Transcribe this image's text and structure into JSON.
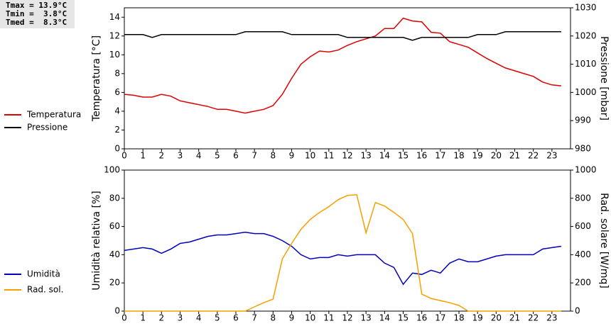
{
  "chart_data": [
    {
      "type": "line",
      "annotations": [
        "Tmax = 13.9°C",
        "Tmin =  3.8°C",
        "Tmed =  8.3°C"
      ],
      "y_label": "Temperatura [°C]",
      "y2_label": "Pressione [mbar]",
      "x": [
        0,
        0.5,
        1,
        1.5,
        2,
        2.5,
        3,
        3.5,
        4,
        4.5,
        5,
        5.5,
        6,
        6.5,
        7,
        7.5,
        8,
        8.5,
        9,
        9.5,
        10,
        10.5,
        11,
        11.5,
        12,
        12.5,
        13,
        13.5,
        14,
        14.5,
        15,
        15.5,
        16,
        16.5,
        17,
        17.5,
        18,
        18.5,
        19,
        19.5,
        20,
        20.5,
        21,
        21.5,
        22,
        22.5,
        23,
        23.5
      ],
      "xlim": [
        0,
        24
      ],
      "xticks": [
        0,
        1,
        2,
        3,
        4,
        5,
        6,
        7,
        8,
        9,
        10,
        11,
        12,
        13,
        14,
        15,
        16,
        17,
        18,
        19,
        20,
        21,
        22,
        23
      ],
      "ylim": [
        0,
        15
      ],
      "yticks": [
        0,
        2,
        4,
        6,
        8,
        10,
        12,
        14
      ],
      "y2lim": [
        980,
        1030
      ],
      "y2ticks": [
        980,
        990,
        1000,
        1010,
        1020,
        1030
      ],
      "series": [
        {
          "name": "Temperatura",
          "color": "#dd0000",
          "values": [
            5.8,
            5.7,
            5.5,
            5.5,
            5.8,
            5.6,
            5.1,
            4.9,
            4.7,
            4.5,
            4.2,
            4.2,
            4.0,
            3.8,
            4.0,
            4.2,
            4.6,
            5.8,
            7.5,
            9.0,
            9.8,
            10.4,
            10.3,
            10.5,
            11.0,
            11.4,
            11.7,
            12.0,
            12.8,
            12.8,
            13.9,
            13.6,
            13.5,
            12.4,
            12.3,
            11.4,
            11.1,
            10.8,
            10.2,
            9.6,
            9.1,
            8.6,
            8.3,
            8.0,
            7.7,
            7.1,
            6.8,
            6.7
          ]
        },
        {
          "name": "Pressione",
          "color": "#000000",
          "axis": "y2",
          "values": [
            1020.5,
            1020.5,
            1020.5,
            1019.5,
            1020.5,
            1020.5,
            1020.5,
            1020.5,
            1020.5,
            1020.5,
            1020.5,
            1020.5,
            1020.5,
            1021.5,
            1021.5,
            1021.5,
            1021.5,
            1021.5,
            1020.5,
            1020.5,
            1020.5,
            1020.5,
            1020.5,
            1020.5,
            1019.5,
            1019.5,
            1019.5,
            1019.5,
            1019.5,
            1019.5,
            1019.5,
            1018.5,
            1019.5,
            1019.5,
            1019.5,
            1019.5,
            1019.5,
            1019.5,
            1020.5,
            1020.5,
            1020.5,
            1021.5,
            1021.5,
            1021.5,
            1021.5,
            1021.5,
            1021.5,
            1021.5
          ]
        }
      ]
    },
    {
      "type": "line",
      "y_label": "Umidità relativa [%]",
      "y2_label": "Rad. solare [W/mq]",
      "x": [
        0,
        0.5,
        1,
        1.5,
        2,
        2.5,
        3,
        3.5,
        4,
        4.5,
        5,
        5.5,
        6,
        6.5,
        7,
        7.5,
        8,
        8.5,
        9,
        9.5,
        10,
        10.5,
        11,
        11.5,
        12,
        12.5,
        13,
        13.5,
        14,
        14.5,
        15,
        15.5,
        16,
        16.5,
        17,
        17.5,
        18,
        18.5,
        19,
        19.5,
        20,
        20.5,
        21,
        21.5,
        22,
        22.5,
        23,
        23.5
      ],
      "xlim": [
        0,
        24
      ],
      "xticks": [
        0,
        1,
        2,
        3,
        4,
        5,
        6,
        7,
        8,
        9,
        10,
        11,
        12,
        13,
        14,
        15,
        16,
        17,
        18,
        19,
        20,
        21,
        22,
        23
      ],
      "ylim": [
        0,
        100
      ],
      "yticks": [
        0,
        20,
        40,
        60,
        80,
        100
      ],
      "y2lim": [
        0,
        1000
      ],
      "y2ticks": [
        0,
        200,
        400,
        600,
        800,
        1000
      ],
      "series": [
        {
          "name": "Umidità",
          "color": "#0000bb",
          "values": [
            43,
            44,
            45,
            44,
            41,
            44,
            48,
            49,
            51,
            53,
            54,
            54,
            55,
            56,
            55,
            55,
            53,
            50,
            46,
            40,
            37,
            38,
            38,
            40,
            39,
            40,
            40,
            40,
            34,
            31,
            19,
            27,
            26,
            29,
            27,
            34,
            37,
            35,
            35,
            37,
            39,
            40,
            40,
            40,
            40,
            44,
            45,
            46
          ]
        },
        {
          "name": "Rad. sol.",
          "color": "#f5a000",
          "axis": "y2",
          "values": [
            0,
            0,
            0,
            0,
            0,
            0,
            0,
            0,
            0,
            0,
            0,
            0,
            0,
            0,
            30,
            60,
            85,
            370,
            480,
            580,
            650,
            700,
            740,
            790,
            820,
            825,
            555,
            770,
            745,
            700,
            650,
            550,
            120,
            90,
            75,
            60,
            40,
            0,
            0,
            0,
            0,
            0,
            0,
            0,
            0,
            0,
            0,
            0
          ]
        }
      ]
    }
  ]
}
